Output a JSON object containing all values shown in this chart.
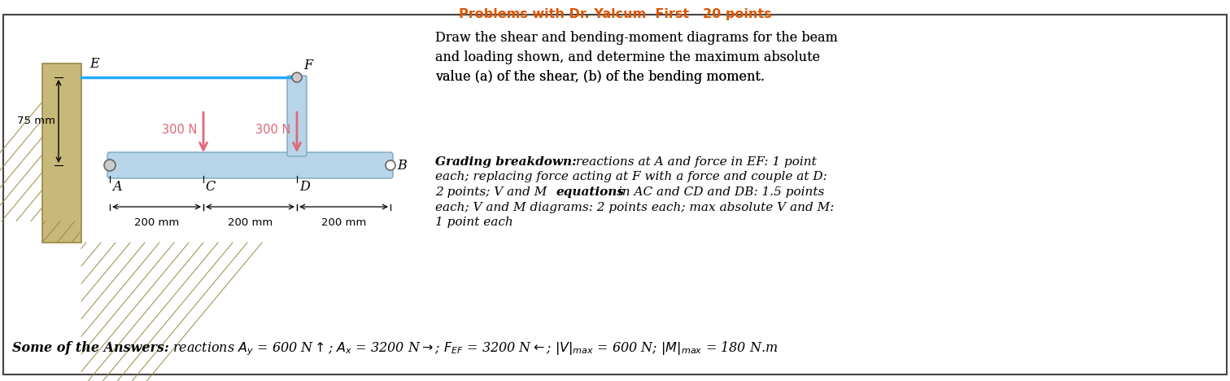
{
  "bg_color": "#ffffff",
  "border_color": "#444444",
  "beam_color": "#b8d4e8",
  "beam_edge_color": "#7aa8c4",
  "wall_color": "#c8b87a",
  "wall_edge_color": "#9a8844",
  "cable_color": "#22aaff",
  "arrow_color": "#e06878",
  "pin_face": "#cccccc",
  "pin_edge": "#666666",
  "label_75mm": "75 mm",
  "label_200mm": "200 mm",
  "label_300N": "300 N",
  "point_E": "E",
  "point_F": "F",
  "point_A": "A",
  "point_B": "B",
  "point_C": "C",
  "point_D": "D",
  "title": "Problems with Dr. Yalcum  First   20 points",
  "title_color": "#dd5500",
  "main_q_line1": "Draw the shear and bending-moment diagrams for the beam",
  "main_q_line2": "and loading shown, and determine the maximum absolute",
  "main_q_line3": "value (",
  "main_q_line3a": "a",
  "main_q_line3b": ") of the shear, (",
  "main_q_line3c": "b",
  "main_q_line3d": ") of the bending moment.",
  "grading_bold": "Grading breakdown:",
  "grading_rest_line1": " reactions at A and force in EF: 1 point",
  "grading_line2": "each; replacing force acting at F with a force and couple at D:",
  "grading_line3_pre": "2 points; V and M ",
  "grading_line3_bold": "equations",
  "grading_line3_post": " in AC and CD and DB: 1.5 points",
  "grading_line4": "each; V and M diagrams: 2 points each; max absolute V and M:",
  "grading_line5": "1 point each",
  "ans_bold": "Some of the Answers:",
  "ans_italic": " reactions "
}
